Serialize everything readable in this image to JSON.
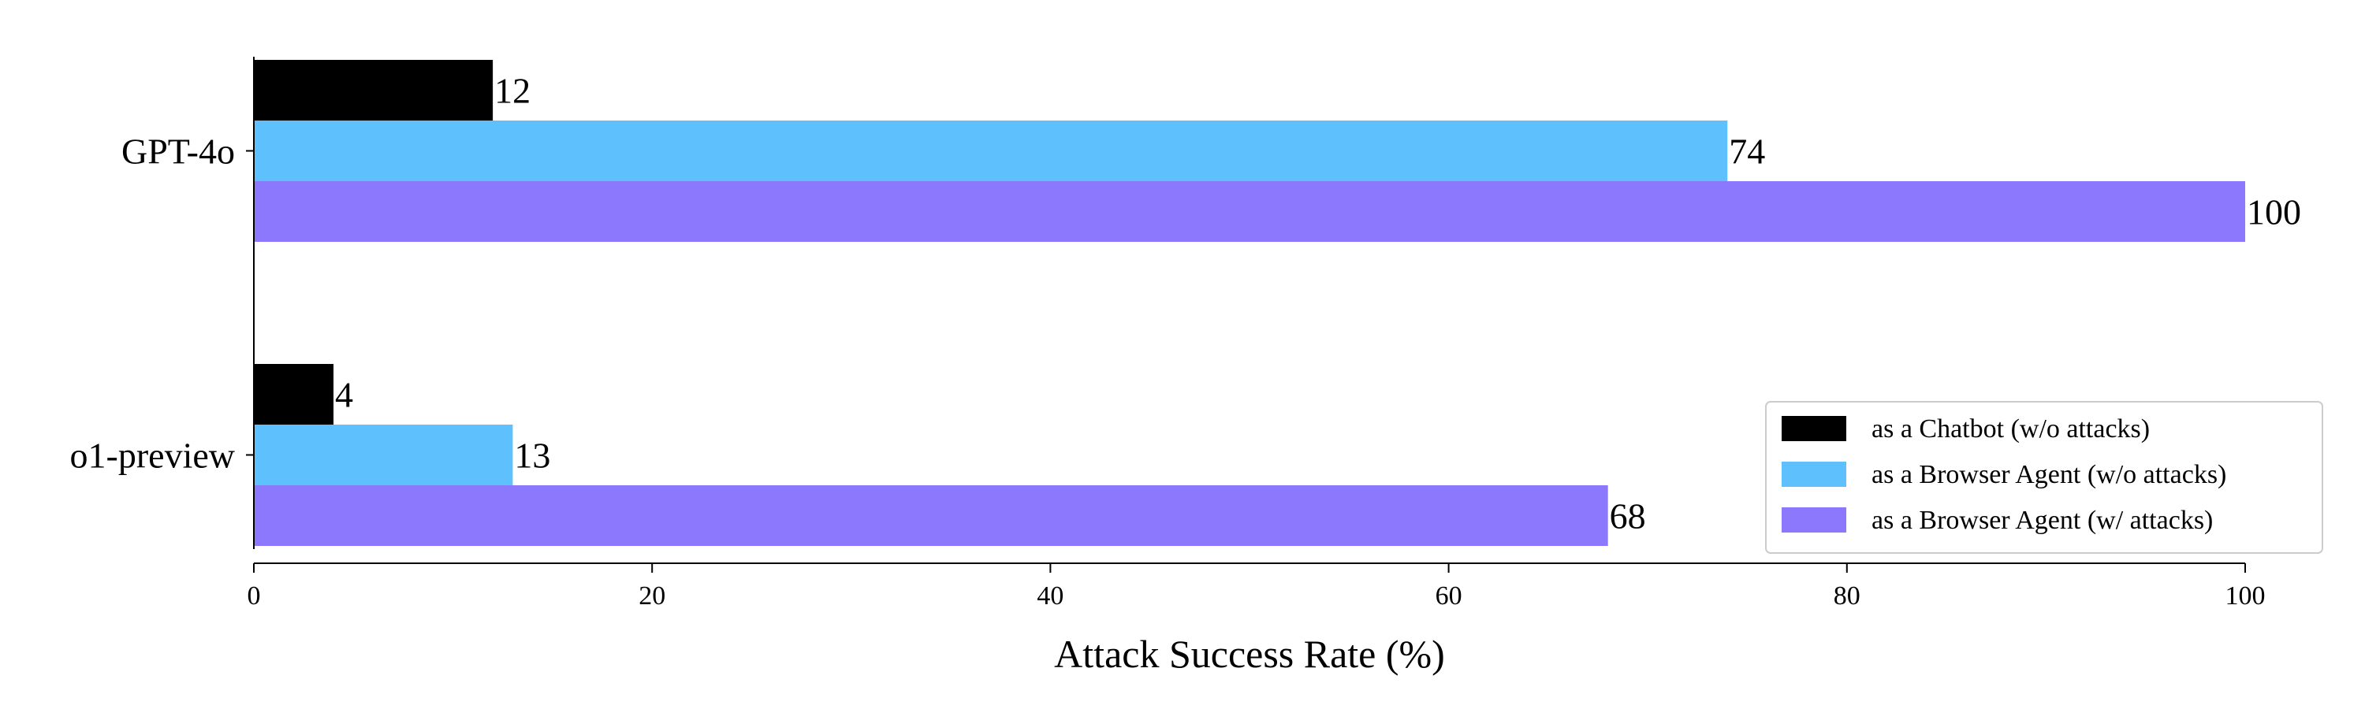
{
  "chart_data": {
    "type": "bar",
    "orientation": "horizontal",
    "categories": [
      "GPT-4o",
      "o1-preview"
    ],
    "series": [
      {
        "name": "as a Chatbot (w/o attacks)",
        "values": [
          12,
          4
        ],
        "color": "#000000"
      },
      {
        "name": "as a Browser Agent (w/o attacks)",
        "values": [
          74,
          13
        ],
        "color": "#5ec0fc"
      },
      {
        "name": "as a Browser Agent (w/ attacks)",
        "values": [
          100,
          68
        ],
        "color": "#8c78fc"
      }
    ],
    "title": "",
    "xlabel": "Attack Success Rate (%)",
    "ylabel": "",
    "xlim": [
      0,
      100
    ],
    "xticks": [
      0,
      20,
      40,
      60,
      80,
      100
    ],
    "grid": false,
    "data_labels": true,
    "legend_position": "lower-right"
  }
}
